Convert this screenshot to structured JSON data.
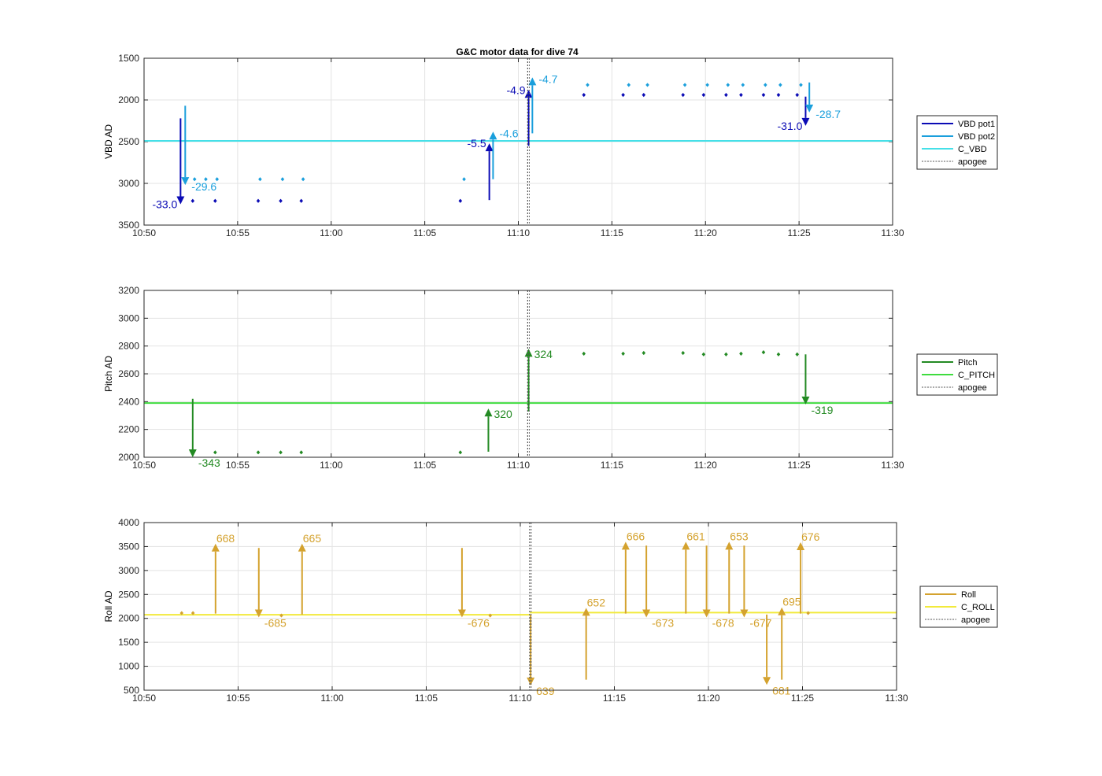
{
  "figure": {
    "title": "G&C motor data for dive 74"
  },
  "chart_data": [
    {
      "type": "scatter",
      "ylabel": "VBD AD",
      "y_reversed": true,
      "ylim": [
        1500,
        3500
      ],
      "yticks": [
        "1500",
        "2000",
        "2500",
        "3000",
        "3500"
      ],
      "xticks": [
        "10:50",
        "10:55",
        "11:00",
        "11:05",
        "11:10",
        "11:15",
        "11:20",
        "11:25",
        "11:30"
      ],
      "xlim": [
        "10:50",
        "11:30"
      ],
      "grid": true,
      "legend_placement": "outside-right",
      "legend": [
        {
          "label": "VBD pot1",
          "color": "#0b0bb5",
          "style": "solid"
        },
        {
          "label": "VBD pot2",
          "color": "#1a9fdc",
          "style": "solid"
        },
        {
          "label": "C_VBD",
          "color": "#45e0e8",
          "style": "solid"
        },
        {
          "label": "apogee",
          "color": "#555555",
          "style": "dotted"
        }
      ],
      "apogee_time": "11:10.5",
      "series": [
        {
          "name": "C_VBD",
          "kind": "hline",
          "color": "#45e0e8",
          "segments": [
            {
              "x0": "10:50",
              "x1": "11:30",
              "y": 2490
            }
          ]
        },
        {
          "name": "VBD pot1",
          "kind": "points",
          "color": "#0b0bb5",
          "points": [
            [
              "10:52.6",
              3210
            ],
            [
              "10:53.8",
              3210
            ],
            [
              "10:56.1",
              3210
            ],
            [
              "10:57.3",
              3210
            ],
            [
              "10:58.4",
              3210
            ],
            [
              "11:06.9",
              3210
            ],
            [
              "11:13.5",
              1940
            ],
            [
              "11:15.6",
              1940
            ],
            [
              "11:16.7",
              1940
            ],
            [
              "11:18.8",
              1940
            ],
            [
              "11:19.9",
              1940
            ],
            [
              "11:21.1",
              1940
            ],
            [
              "11:21.9",
              1940
            ],
            [
              "11:23.1",
              1940
            ],
            [
              "11:23.9",
              1940
            ],
            [
              "11:24.9",
              1940
            ]
          ]
        },
        {
          "name": "VBD pot2",
          "kind": "points",
          "color": "#1a9fdc",
          "points": [
            [
              "10:52.7",
              2950
            ],
            [
              "10:53.3",
              2950
            ],
            [
              "10:53.9",
              2950
            ],
            [
              "10:56.2",
              2950
            ],
            [
              "10:57.4",
              2950
            ],
            [
              "10:58.5",
              2950
            ],
            [
              "11:07.1",
              2950
            ],
            [
              "11:13.7",
              1820
            ],
            [
              "11:15.9",
              1820
            ],
            [
              "11:16.9",
              1820
            ],
            [
              "11:18.9",
              1820
            ],
            [
              "11:20.1",
              1820
            ],
            [
              "11:21.2",
              1820
            ],
            [
              "11:22.0",
              1820
            ],
            [
              "11:23.2",
              1820
            ],
            [
              "11:24.0",
              1820
            ],
            [
              "11:25.1",
              1820
            ]
          ]
        },
        {
          "name": "VBD pot1 moves",
          "kind": "arrows",
          "color": "#0b0bb5",
          "arrows": [
            {
              "x": "10:51.95",
              "y0": 2220,
              "y1": 3250,
              "label": "-33.0",
              "label_side": "left"
            },
            {
              "x": "11:08.45",
              "y0": 3200,
              "y1": 2520,
              "label": "-5.5",
              "label_side": "left"
            },
            {
              "x": "11:10.55",
              "y0": 2550,
              "y1": 1880,
              "label": "-4.9",
              "label_side": "left"
            },
            {
              "x": "11:25.35",
              "y0": 1960,
              "y1": 2310,
              "label": "-31.0",
              "label_side": "left"
            }
          ]
        },
        {
          "name": "VBD pot2 moves",
          "kind": "arrows",
          "color": "#1a9fdc",
          "arrows": [
            {
              "x": "10:52.2",
              "y0": 2070,
              "y1": 3020,
              "label": "-29.6",
              "label_side": "right"
            },
            {
              "x": "11:08.65",
              "y0": 2950,
              "y1": 2380,
              "label": "-4.6",
              "label_side": "right"
            },
            {
              "x": "11:10.75",
              "y0": 2400,
              "y1": 1730,
              "label": "-4.7",
              "label_side": "right"
            },
            {
              "x": "11:25.55",
              "y0": 1790,
              "y1": 2150,
              "label": "-28.7",
              "label_side": "right"
            }
          ]
        }
      ]
    },
    {
      "type": "scatter",
      "ylabel": "Pitch AD",
      "y_reversed": false,
      "ylim": [
        2000,
        3200
      ],
      "yticks": [
        "2000",
        "2200",
        "2400",
        "2600",
        "2800",
        "3000",
        "3200"
      ],
      "xticks": [
        "10:50",
        "10:55",
        "11:00",
        "11:05",
        "11:10",
        "11:15",
        "11:20",
        "11:25",
        "11:30"
      ],
      "xlim": [
        "10:50",
        "11:30"
      ],
      "grid": true,
      "legend_placement": "outside-right",
      "legend": [
        {
          "label": "Pitch",
          "color": "#238a23",
          "style": "solid"
        },
        {
          "label": "C_PITCH",
          "color": "#3fdc3f",
          "style": "solid"
        },
        {
          "label": "apogee",
          "color": "#555555",
          "style": "dotted"
        }
      ],
      "apogee_time": "11:10.5",
      "series": [
        {
          "name": "C_PITCH",
          "kind": "hline",
          "color": "#3fdc3f",
          "segments": [
            {
              "x0": "10:50",
              "x1": "11:30",
              "y": 2390
            }
          ]
        },
        {
          "name": "Pitch",
          "kind": "points",
          "color": "#238a23",
          "points": [
            [
              "10:53.8",
              2035
            ],
            [
              "10:56.1",
              2035
            ],
            [
              "10:57.3",
              2035
            ],
            [
              "10:58.4",
              2035
            ],
            [
              "11:06.9",
              2035
            ],
            [
              "11:13.5",
              2745
            ],
            [
              "11:15.6",
              2745
            ],
            [
              "11:16.7",
              2750
            ],
            [
              "11:18.8",
              2750
            ],
            [
              "11:19.9",
              2740
            ],
            [
              "11:21.1",
              2740
            ],
            [
              "11:21.9",
              2745
            ],
            [
              "11:23.1",
              2755
            ],
            [
              "11:23.9",
              2740
            ],
            [
              "11:24.9",
              2740
            ]
          ]
        },
        {
          "name": "Pitch moves",
          "kind": "arrows",
          "color": "#238a23",
          "arrows": [
            {
              "x": "10:52.6",
              "y0": 2420,
              "y1": 2000,
              "label": "-343",
              "label_side": "right-below"
            },
            {
              "x": "11:08.4",
              "y0": 2040,
              "y1": 2350,
              "label": "320",
              "label_side": "right-below"
            },
            {
              "x": "11:10.55",
              "y0": 2330,
              "y1": 2780,
              "label": "324",
              "label_side": "right-below"
            },
            {
              "x": "11:25.35",
              "y0": 2740,
              "y1": 2380,
              "label": "-319",
              "label_side": "right-below"
            }
          ]
        }
      ]
    },
    {
      "type": "scatter",
      "ylabel": "Roll AD",
      "y_reversed": false,
      "ylim": [
        500,
        4000
      ],
      "yticks": [
        "500",
        "1000",
        "1500",
        "2000",
        "2500",
        "3000",
        "3500",
        "4000"
      ],
      "xticks": [
        "10:50",
        "10:55",
        "11:00",
        "11:05",
        "11:10",
        "11:15",
        "11:20",
        "11:25",
        "11:30"
      ],
      "xlim": [
        "10:50",
        "11:30"
      ],
      "grid": true,
      "legend_placement": "outside-right",
      "legend": [
        {
          "label": "Roll",
          "color": "#d4a22e",
          "style": "solid"
        },
        {
          "label": "C_ROLL",
          "color": "#f2ea3c",
          "style": "solid"
        },
        {
          "label": "apogee",
          "color": "#555555",
          "style": "dotted"
        }
      ],
      "apogee_time": "11:10.5",
      "series": [
        {
          "name": "C_ROLL",
          "kind": "hline",
          "color": "#f2ea3c",
          "segments": [
            {
              "x0": "10:50",
              "x1": "11:10.5",
              "y": 2075
            },
            {
              "x0": "11:10.5",
              "x1": "11:30",
              "y": 2120
            }
          ]
        },
        {
          "name": "Roll",
          "kind": "points",
          "color": "#d4a22e",
          "points": [
            [
              "10:52.0",
              2110
            ],
            [
              "10:52.6",
              2110
            ],
            [
              "10:57.3",
              2060
            ],
            [
              "11:08.4",
              2060
            ],
            [
              "11:25.3",
              2110
            ]
          ]
        },
        {
          "name": "Roll moves",
          "kind": "arrows",
          "color": "#d4a22e",
          "arrows": [
            {
              "x": "10:53.8",
              "y0": 2100,
              "y1": 3560,
              "label": "668",
              "label_side": "right-top"
            },
            {
              "x": "10:56.1",
              "y0": 3470,
              "y1": 2020,
              "label": "-685",
              "label_side": "right-below"
            },
            {
              "x": "10:58.4",
              "y0": 2080,
              "y1": 3560,
              "label": "665",
              "label_side": "right-top"
            },
            {
              "x": "11:06.9",
              "y0": 3470,
              "y1": 2020,
              "label": "-676",
              "label_side": "right-below"
            },
            {
              "x": "11:10.55",
              "y0": 2080,
              "y1": 600,
              "label": "639",
              "label_side": "right-below"
            },
            {
              "x": "11:13.5",
              "y0": 720,
              "y1": 2220,
              "label": "652",
              "label_side": "right-top"
            },
            {
              "x": "11:15.6",
              "y0": 2100,
              "y1": 3600,
              "label": "666",
              "label_side": "right-top"
            },
            {
              "x": "11:16.7",
              "y0": 3520,
              "y1": 2020,
              "label": "-673",
              "label_side": "right-below"
            },
            {
              "x": "11:18.8",
              "y0": 2100,
              "y1": 3600,
              "label": "661",
              "label_side": "right-top"
            },
            {
              "x": "11:19.9",
              "y0": 3520,
              "y1": 2020,
              "label": "-678",
              "label_side": "right-below"
            },
            {
              "x": "11:21.1",
              "y0": 2100,
              "y1": 3600,
              "label": "653",
              "label_side": "right-top"
            },
            {
              "x": "11:21.9",
              "y0": 3520,
              "y1": 2020,
              "label": "-677",
              "label_side": "right-below"
            },
            {
              "x": "11:23.1",
              "y0": 2080,
              "y1": 610,
              "label": "681",
              "label_side": "right-below"
            },
            {
              "x": "11:23.9",
              "y0": 720,
              "y1": 2230,
              "label": "695",
              "label_side": "right-top"
            },
            {
              "x": "11:24.9",
              "y0": 2100,
              "y1": 3590,
              "label": "676",
              "label_side": "right-top"
            }
          ]
        }
      ]
    }
  ]
}
